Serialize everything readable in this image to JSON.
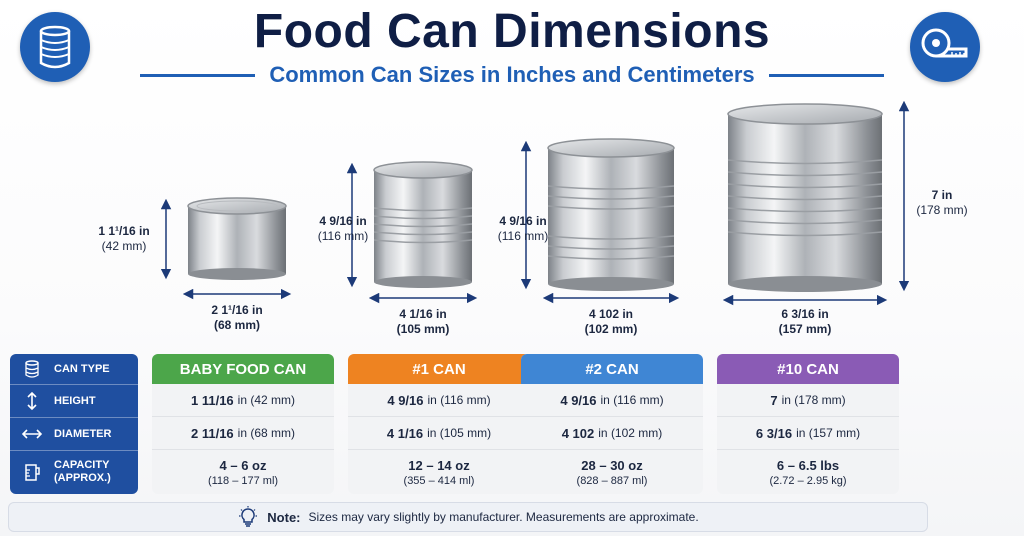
{
  "header": {
    "title": "Food Can Dimensions",
    "subtitle": "Common Can Sizes in Inches and Centimeters",
    "left_icon": "can-icon",
    "right_icon": "measuring-tape-icon",
    "brand_color": "#1f5fb5",
    "title_color": "#0f1e45"
  },
  "cans": [
    {
      "name": "baby-food-can",
      "height_in": "1 1¹/16 in",
      "height_mm": "(42 mm)",
      "diameter_in": "2 1¹/16 in",
      "diameter_mm": "(68 mm)"
    },
    {
      "name": "no1-can",
      "height_in": "4 9/16 in",
      "height_mm": "(116 mm)",
      "diameter_in": "4 1/16 in",
      "diameter_mm": "(105 mm)"
    },
    {
      "name": "no2-can",
      "height_in": "4 9/16 in",
      "height_mm": "(116 mm)",
      "diameter_in": "4 102 in",
      "diameter_mm": "(102 mm)"
    },
    {
      "name": "no10-can",
      "height_in": "7 in",
      "height_mm": "(178 mm)",
      "diameter_in": "6 3/16 in",
      "diameter_mm": "(157 mm)"
    }
  ],
  "table": {
    "row_labels": {
      "can_type": "CAN TYPE",
      "height": "HEIGHT",
      "diameter": "DIAMETER",
      "capacity_1": "CAPACITY",
      "capacity_2": "(APPROX.)"
    },
    "columns": [
      {
        "header": "BABY FOOD CAN",
        "color": "#4ca64a",
        "height_main": "1 11/16",
        "height_rest": "in (42 mm)",
        "diameter_main": "2 11/16",
        "diameter_rest": "in (68 mm)",
        "capacity_main": "4 – 6 oz",
        "capacity_sub": "(118 – 177 ml)"
      },
      {
        "header": "#1 CAN",
        "color": "#ee8321",
        "height_main": "4 9/16",
        "height_rest": "in (116 mm)",
        "diameter_main": "4 1/16",
        "diameter_rest": "in (105 mm)",
        "capacity_main": "12 – 14 oz",
        "capacity_sub": "(355 – 414 ml)"
      },
      {
        "header": "#2 CAN",
        "color": "#3f86d4",
        "height_main": "4 9/16",
        "height_rest": "in (116 mm)",
        "diameter_main": "4 102",
        "diameter_rest": "in (102 mm)",
        "capacity_main": "28 – 30 oz",
        "capacity_sub": "(828 – 887 ml)"
      },
      {
        "header": "#10 CAN",
        "color": "#8a5bb5",
        "height_main": "7",
        "height_rest": "in (178 mm)",
        "diameter_main": "6 3/16",
        "diameter_rest": "in (157 mm)",
        "capacity_main": "6 – 6.5 lbs",
        "capacity_sub": "(2.72 – 2.95 kg)"
      }
    ]
  },
  "note": {
    "icon": "lightbulb-icon",
    "label": "Note:",
    "text": "Sizes may vary slightly by manufacturer. Measurements are approximate."
  }
}
